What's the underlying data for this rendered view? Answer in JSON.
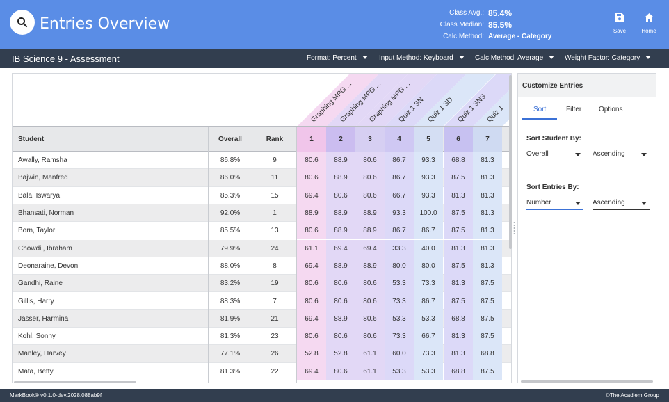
{
  "header": {
    "title": "Entries Overview",
    "stats": [
      {
        "label": "Class Avg.:",
        "value": "85.4%"
      },
      {
        "label": "Class Median:",
        "value": "85.5%"
      },
      {
        "label": "Calc Method:",
        "value": "Average - Category"
      }
    ],
    "save_label": "Save",
    "home_label": "Home",
    "search_icon": "search-icon",
    "save_icon": "floppy-disk-icon",
    "home_icon": "home-icon"
  },
  "subbar": {
    "course": "IB Science 9 - Assessment",
    "dropdowns": [
      {
        "label": "Format: Percent"
      },
      {
        "label": "Input Method: Keyboard"
      },
      {
        "label": "Calc Method: Average"
      },
      {
        "label": "Weight Factor: Category"
      }
    ]
  },
  "table": {
    "headers": {
      "student": "Student",
      "overall": "Overall",
      "rank": "Rank"
    },
    "entry_titles": [
      "Graphing MPG ...",
      "Graphing MPG ...",
      "Graphing MPG ...",
      "Quiz 1 SN",
      "Quiz 1 SD",
      "Quiz 1 SNS",
      "Quiz 1"
    ],
    "entry_numbers": [
      "1",
      "2",
      "3",
      "4",
      "5",
      "6",
      "7"
    ],
    "entry_colors": [
      "#f5d9f1",
      "#e2d8f6",
      "#e2d8f6",
      "#dcd9f8",
      "#dbe6f8",
      "#dcd9f8",
      "#dbe6f8"
    ],
    "entry_header_colors": [
      "#f0c5ea",
      "#cbbdf0",
      "#d6cff2",
      "#cfc8f3",
      "#d4def3",
      "#c7c1f1",
      "#cfdaf2"
    ],
    "rows": [
      {
        "student": "Awally, Ramsha",
        "overall": "86.8%",
        "rank": "9",
        "marks": [
          "80.6",
          "88.9",
          "80.6",
          "86.7",
          "93.3",
          "68.8",
          "81.3"
        ]
      },
      {
        "student": "Bajwin, Manfred",
        "overall": "86.0%",
        "rank": "11",
        "marks": [
          "80.6",
          "88.9",
          "80.6",
          "86.7",
          "93.3",
          "87.5",
          "81.3"
        ]
      },
      {
        "student": "Bala, Iswarya",
        "overall": "85.3%",
        "rank": "15",
        "marks": [
          "69.4",
          "80.6",
          "80.6",
          "66.7",
          "93.3",
          "81.3",
          "81.3"
        ]
      },
      {
        "student": "Bhansati, Norman",
        "overall": "92.0%",
        "rank": "1",
        "marks": [
          "88.9",
          "88.9",
          "88.9",
          "93.3",
          "100.0",
          "87.5",
          "81.3"
        ]
      },
      {
        "student": "Born, Taylor",
        "overall": "85.5%",
        "rank": "13",
        "marks": [
          "80.6",
          "88.9",
          "88.9",
          "86.7",
          "86.7",
          "87.5",
          "81.3"
        ]
      },
      {
        "student": "Chowdii, Ibraham",
        "overall": "79.9%",
        "rank": "24",
        "marks": [
          "61.1",
          "69.4",
          "69.4",
          "33.3",
          "40.0",
          "81.3",
          "81.3"
        ]
      },
      {
        "student": "Deonaraine, Devon",
        "overall": "88.0%",
        "rank": "8",
        "marks": [
          "69.4",
          "88.9",
          "88.9",
          "80.0",
          "80.0",
          "87.5",
          "81.3"
        ]
      },
      {
        "student": "Gandhi, Raine",
        "overall": "83.2%",
        "rank": "19",
        "marks": [
          "80.6",
          "80.6",
          "80.6",
          "53.3",
          "73.3",
          "81.3",
          "87.5"
        ]
      },
      {
        "student": "Gillis, Harry",
        "overall": "88.3%",
        "rank": "7",
        "marks": [
          "80.6",
          "80.6",
          "80.6",
          "73.3",
          "86.7",
          "87.5",
          "87.5"
        ]
      },
      {
        "student": "Jasser, Harmina",
        "overall": "81.9%",
        "rank": "21",
        "marks": [
          "69.4",
          "88.9",
          "80.6",
          "53.3",
          "53.3",
          "68.8",
          "87.5"
        ]
      },
      {
        "student": "Kohl, Sonny",
        "overall": "81.3%",
        "rank": "23",
        "marks": [
          "80.6",
          "80.6",
          "80.6",
          "73.3",
          "66.7",
          "81.3",
          "87.5"
        ]
      },
      {
        "student": "Manley, Harvey",
        "overall": "77.1%",
        "rank": "26",
        "marks": [
          "52.8",
          "52.8",
          "61.1",
          "60.0",
          "73.3",
          "81.3",
          "68.8"
        ]
      },
      {
        "student": "Mata, Betty",
        "overall": "81.3%",
        "rank": "22",
        "marks": [
          "69.4",
          "80.6",
          "61.1",
          "53.3",
          "53.3",
          "68.8",
          "87.5"
        ]
      }
    ]
  },
  "side": {
    "title": "Customize Entries",
    "tabs": [
      "Sort",
      "Filter",
      "Options"
    ],
    "sort_student_label": "Sort Student By:",
    "sort_student_value": "Overall",
    "sort_student_order": "Ascending",
    "sort_entries_label": "Sort Entries By:",
    "sort_entries_value": "Number",
    "sort_entries_order": "Ascending"
  },
  "footer": {
    "version": "MarkBook® v0.1.0-dev.2028.088ab9f",
    "copyright": "©The Acadiem Group"
  },
  "colors": {
    "header_bg": "#5a8de6",
    "bar_bg": "#323e4f",
    "accent": "#3b71d6"
  }
}
